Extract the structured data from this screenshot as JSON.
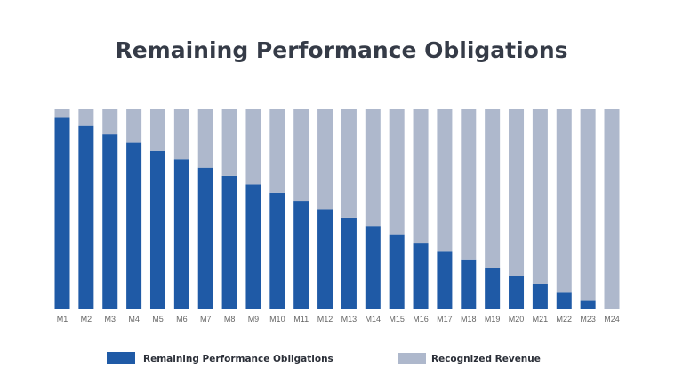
{
  "chart_data": {
    "type": "bar",
    "stacked": true,
    "title": "Remaining Performance Obligations",
    "xlabel": "",
    "ylabel": "",
    "ylim": [
      0,
      100
    ],
    "grid": false,
    "legend_position": "bottom",
    "categories": [
      "M1",
      "M2",
      "M3",
      "M4",
      "M5",
      "M6",
      "M7",
      "M8",
      "M9",
      "M10",
      "M11",
      "M12",
      "M13",
      "M14",
      "M15",
      "M16",
      "M17",
      "M18",
      "M19",
      "M20",
      "M21",
      "M22",
      "M23",
      "M24"
    ],
    "series": [
      {
        "name": "Remaining Performance Obligations",
        "color": "#1f5aa6",
        "values": [
          95.8,
          91.7,
          87.5,
          83.3,
          79.2,
          75.0,
          70.8,
          66.7,
          62.5,
          58.3,
          54.2,
          50.0,
          45.8,
          41.7,
          37.5,
          33.3,
          29.2,
          25.0,
          20.8,
          16.7,
          12.5,
          8.3,
          4.2,
          0
        ]
      },
      {
        "name": "Recognized Revenue",
        "color": "#aeb8cc",
        "values": [
          4.2,
          8.3,
          12.5,
          16.7,
          20.8,
          25.0,
          29.2,
          33.3,
          37.5,
          41.7,
          45.8,
          50.0,
          54.2,
          58.3,
          62.5,
          66.7,
          70.8,
          75.0,
          79.2,
          83.3,
          87.5,
          91.7,
          95.8,
          100
        ]
      }
    ]
  }
}
